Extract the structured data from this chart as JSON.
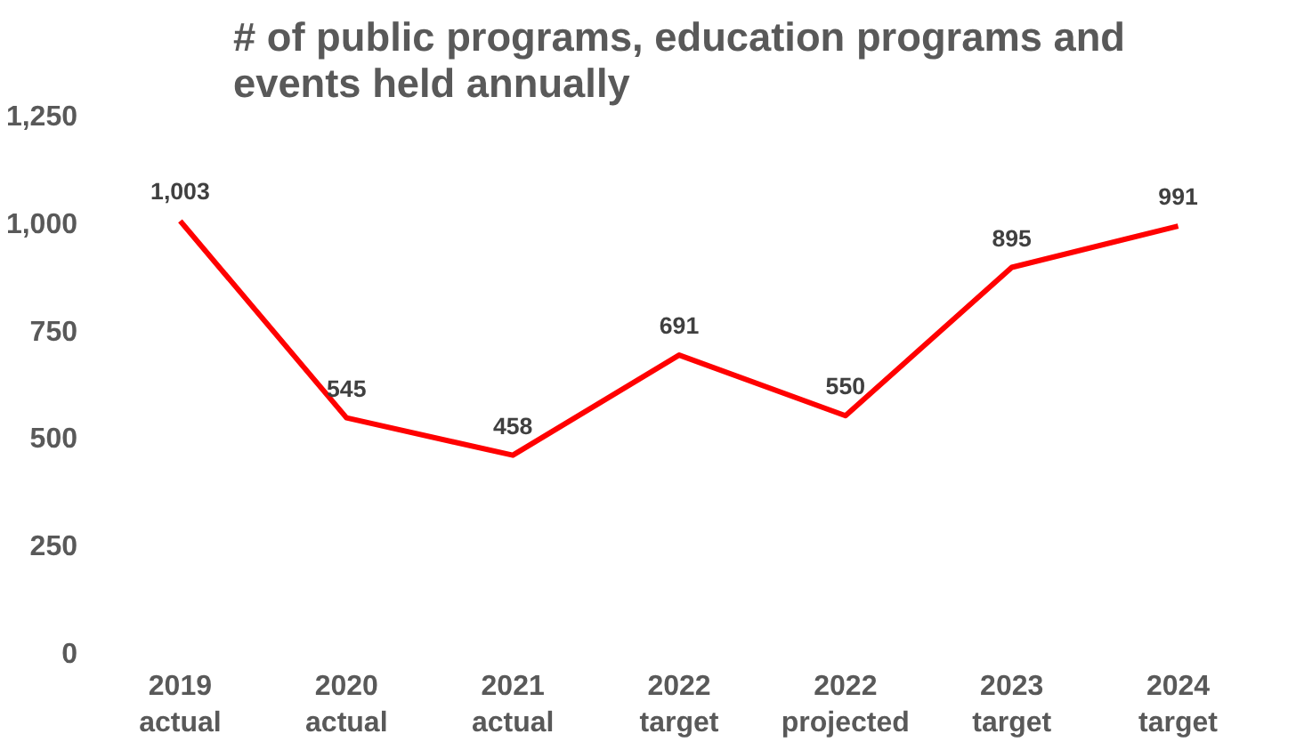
{
  "chart_data": {
    "type": "line",
    "title": "# of public programs, education programs and\nevents held annually",
    "categories": [
      "2019\nactual",
      "2020\nactual",
      "2021\nactual",
      "2022\ntarget",
      "2022\nprojected",
      "2023\ntarget",
      "2024\ntarget"
    ],
    "series": [
      {
        "color": "#ff0000",
        "values": [
          1003,
          545,
          458,
          691,
          550,
          895,
          991
        ],
        "value_labels": [
          "1,003",
          "545",
          "458",
          "691",
          "550",
          "895",
          "991"
        ]
      }
    ],
    "ylim": [
      0,
      1250
    ],
    "yticks": [
      0,
      {
        "value": 250,
        "label": "250"
      },
      {
        "value": 500,
        "label": "500"
      },
      {
        "value": 750,
        "label": "750"
      },
      {
        "value": 1000,
        "label": "1,000"
      },
      {
        "value": 1250,
        "label": "1,250"
      }
    ],
    "grid": false,
    "marker": "none",
    "line_style": "solid"
  }
}
